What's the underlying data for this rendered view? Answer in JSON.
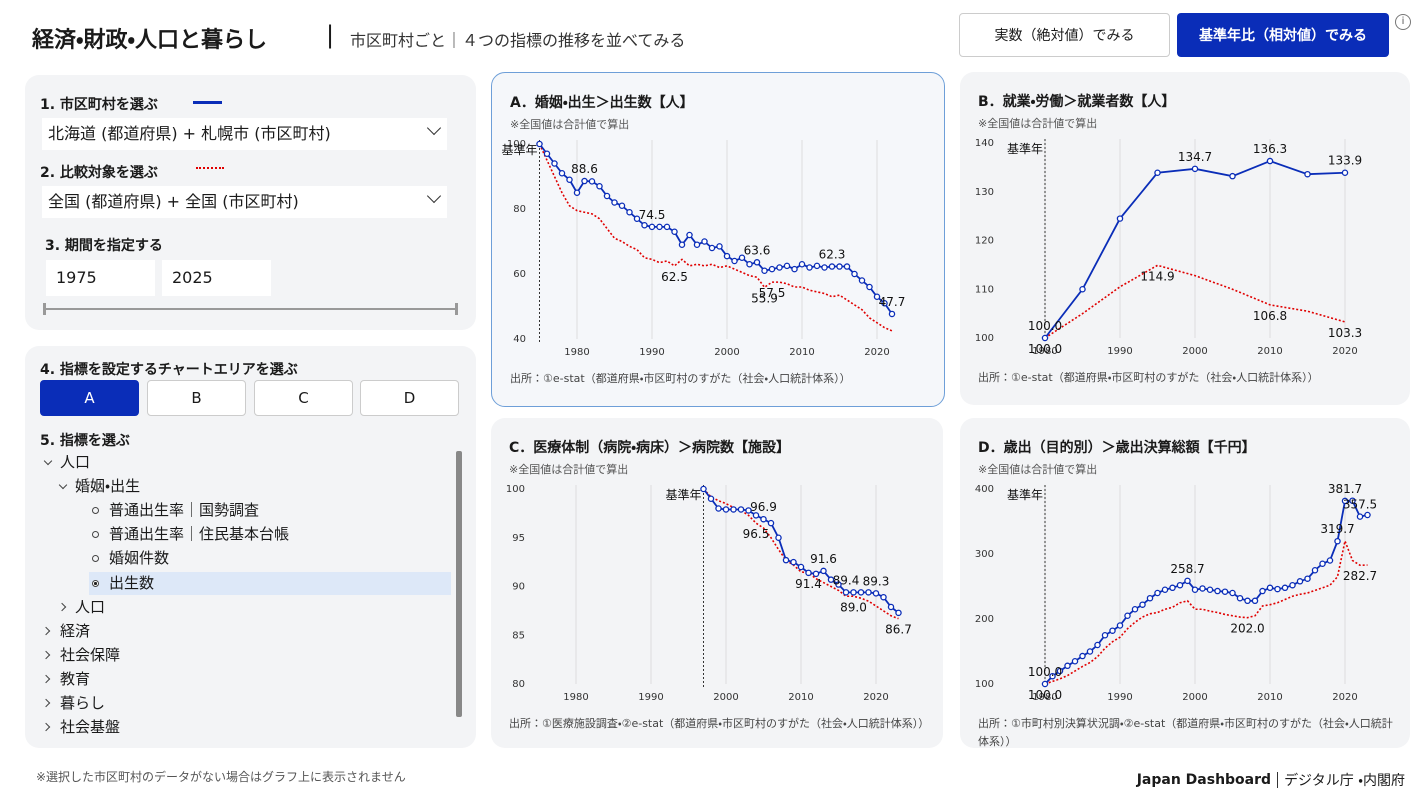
{
  "header": {
    "title": "経済・財政・人口と暮らし",
    "separator": "|",
    "subtitle": "市区町村ごと｜４つの指標の推移を並べてみる",
    "buttons": [
      "実数（絶対値）でみる",
      "基準年比（相対値）でみる"
    ],
    "info": "i"
  },
  "sidebar": {
    "area": {
      "label": "1. 市区町村を選ぶ",
      "value": "北海道 (都道府県) + 札幌市 (市区町村)"
    },
    "compare": {
      "label": "2. 比較対象を選ぶ",
      "value": "全国 (都道府県) + 全国 (市区町村)"
    },
    "period": {
      "label": "3. 期間を指定する",
      "start": "1975",
      "end": "2025"
    },
    "chart_area": {
      "label": "4. 指標を設定するチャートエリアを選ぶ",
      "tabs": [
        "A",
        "B",
        "C",
        "D"
      ]
    },
    "indicator": {
      "label": "5. 指標を選ぶ",
      "items": [
        "人口",
        "婚姻・出生",
        "普通出生率｜国勢調査",
        "普通出生率｜住民基本台帳",
        "婚姻件数",
        "出生数",
        "人口",
        "経済",
        "社会保障",
        "教育",
        "暮らし",
        "社会基盤"
      ]
    }
  },
  "chart_data": [
    {
      "type": "line",
      "title": "A．婚姻・出生＞出生数【人】",
      "note": "※全国値は合計値で算出",
      "source": "出所：①e-stat（都道府県・市区町村のすがた（社会・人口統計体系））",
      "base_year": 1975,
      "base_year_label": "基準年",
      "xlim": [
        1974,
        2026
      ],
      "xticks": [
        1980,
        1990,
        2000,
        2010,
        2020
      ],
      "ylim": [
        40,
        100
      ],
      "yticks": [
        40,
        60,
        80,
        100
      ],
      "grid": "x",
      "x": [
        1975,
        1976,
        1977,
        1978,
        1979,
        1980,
        1981,
        1982,
        1983,
        1984,
        1985,
        1986,
        1987,
        1988,
        1989,
        1990,
        1991,
        1992,
        1993,
        1994,
        1995,
        1996,
        1997,
        1998,
        1999,
        2000,
        2001,
        2002,
        2003,
        2004,
        2005,
        2006,
        2007,
        2008,
        2009,
        2010,
        2011,
        2012,
        2013,
        2014,
        2015,
        2016,
        2017,
        2018,
        2019,
        2020,
        2021,
        2022
      ],
      "series": [
        {
          "color": "#0a2db8",
          "line_style": "solid",
          "markers": true,
          "values": [
            100,
            97,
            94,
            91,
            89,
            85,
            88.6,
            88.5,
            87,
            84,
            82,
            81,
            79,
            77,
            75,
            74.5,
            74.5,
            74.5,
            73,
            69,
            72,
            69,
            70,
            68,
            68.5,
            65.5,
            64,
            65,
            63,
            63.6,
            61,
            61.5,
            62,
            62.5,
            61.5,
            63,
            62,
            62.5,
            62,
            62.3,
            62.3,
            62.3,
            60,
            58,
            56,
            53,
            51,
            47.7
          ],
          "value_labels": [
            null,
            null,
            null,
            null,
            null,
            null,
            "88.6",
            null,
            null,
            null,
            null,
            null,
            null,
            null,
            null,
            "74.5",
            null,
            null,
            null,
            null,
            null,
            null,
            null,
            null,
            null,
            null,
            null,
            null,
            null,
            "63.6",
            null,
            null,
            null,
            null,
            null,
            null,
            null,
            null,
            null,
            "62.3",
            null,
            null,
            null,
            null,
            null,
            null,
            null,
            "47.7"
          ]
        },
        {
          "color": "#e00000",
          "line_style": "dotted",
          "markers": false,
          "values": [
            100,
            95,
            90,
            85,
            81,
            79.5,
            79,
            78.5,
            77,
            74,
            71,
            70,
            68.5,
            67.5,
            65,
            64.5,
            63.5,
            64,
            62.5,
            64.5,
            62.5,
            63,
            62.5,
            63,
            62,
            62.5,
            61.5,
            60.5,
            59.5,
            59,
            55.9,
            57.5,
            57.5,
            57,
            56,
            56,
            55,
            54.5,
            54,
            53,
            53.5,
            52,
            50.5,
            49,
            46.5,
            45,
            43.5,
            42.5
          ],
          "value_labels": [
            null,
            null,
            null,
            null,
            null,
            null,
            null,
            null,
            null,
            null,
            null,
            null,
            null,
            null,
            null,
            null,
            null,
            null,
            "62.5",
            null,
            null,
            null,
            null,
            null,
            null,
            null,
            null,
            null,
            null,
            null,
            "55.9",
            "57.5",
            null,
            null,
            null,
            null,
            null,
            null,
            null,
            null,
            null,
            null,
            null,
            null,
            null,
            null,
            null,
            null
          ]
        }
      ]
    },
    {
      "type": "line",
      "title": "B．就業・労働＞就業者数【人】",
      "note": "※全国値は合計値で算出",
      "source": "出所：①e-stat（都道府県・市区町村のすがた（社会・人口統計体系））",
      "base_year": 1980,
      "base_year_label": "基準年",
      "xlim": [
        1974,
        2026
      ],
      "xticks": [
        1980,
        1990,
        2000,
        2010,
        2020
      ],
      "ylim": [
        100,
        140
      ],
      "yticks": [
        100,
        110,
        120,
        130,
        140
      ],
      "grid": "x",
      "x": [
        1980,
        1985,
        1990,
        1995,
        2000,
        2005,
        2010,
        2015,
        2020
      ],
      "series": [
        {
          "color": "#0a2db8",
          "line_style": "solid",
          "markers": true,
          "values": [
            100,
            110,
            124.5,
            133.9,
            134.7,
            133.2,
            136.3,
            133.6,
            133.9
          ],
          "value_labels": [
            "100.0",
            null,
            null,
            null,
            "134.7",
            null,
            "136.3",
            null,
            "133.9"
          ]
        },
        {
          "color": "#e00000",
          "line_style": "dotted",
          "markers": false,
          "values": [
            100,
            105,
            110.5,
            114.9,
            112.8,
            110,
            106.8,
            105.5,
            103.3
          ],
          "value_labels": [
            "100.0",
            null,
            null,
            "114.9",
            null,
            null,
            "106.8",
            null,
            "103.3"
          ]
        }
      ]
    },
    {
      "type": "line",
      "title": "C．医療体制（病院・病床）＞病院数【施設】",
      "note": "※全国値は合計値で算出",
      "source": "出所：①医療施設調査・②e-stat（都道府県・市区町村のすがた（社会・人口統計体系））",
      "base_year": 1997,
      "base_year_label": "基準年",
      "xlim": [
        1974,
        2026
      ],
      "xticks": [
        1980,
        1990,
        2000,
        2010,
        2020
      ],
      "ylim": [
        80,
        100
      ],
      "yticks": [
        80,
        85,
        90,
        95,
        100
      ],
      "grid": "x",
      "x": [
        1997,
        1998,
        1999,
        2000,
        2001,
        2002,
        2003,
        2004,
        2005,
        2006,
        2007,
        2008,
        2009,
        2010,
        2011,
        2012,
        2013,
        2014,
        2015,
        2016,
        2017,
        2018,
        2019,
        2020,
        2021,
        2022,
        2023
      ],
      "series": [
        {
          "color": "#0a2db8",
          "line_style": "solid",
          "markers": true,
          "values": [
            100,
            99,
            98,
            97.9,
            97.9,
            97.9,
            97.8,
            97.3,
            96.9,
            96.5,
            95,
            92.7,
            92.5,
            92,
            91.4,
            91.3,
            91.6,
            90.7,
            90.2,
            89.4,
            89.4,
            89.4,
            89.4,
            89.3,
            88.9,
            87.9,
            87.3
          ],
          "value_labels": [
            null,
            null,
            null,
            null,
            null,
            null,
            null,
            null,
            "96.9",
            null,
            null,
            null,
            null,
            null,
            null,
            null,
            "91.6",
            null,
            null,
            "89.4",
            null,
            null,
            null,
            "89.3",
            null,
            null,
            null
          ]
        },
        {
          "color": "#e00000",
          "line_style": "dotted",
          "markers": false,
          "values": [
            100,
            99.2,
            98.8,
            98.5,
            98.1,
            97.8,
            97.3,
            96.5,
            96,
            95,
            93.8,
            92.7,
            92.2,
            91.5,
            91.4,
            90.8,
            90.4,
            90,
            89.6,
            89,
            89,
            88.8,
            88.5,
            88,
            87.5,
            87,
            86.7
          ],
          "value_labels": [
            null,
            null,
            null,
            null,
            null,
            null,
            null,
            "96.5",
            null,
            null,
            null,
            null,
            null,
            null,
            "91.4",
            null,
            null,
            null,
            null,
            null,
            "89.0",
            null,
            null,
            null,
            null,
            null,
            "86.7"
          ]
        }
      ]
    },
    {
      "type": "line",
      "title": "D．歳出（目的別）＞歳出決算総額【千円】",
      "note": "※全国値は合計値で算出",
      "source": "出所：①市町村別決算状況調・②e-stat（都道府県・市区町村のすがた（社会・人口統計体系））",
      "base_year": 1980,
      "base_year_label": "基準年",
      "xlim": [
        1974,
        2026
      ],
      "xticks": [
        1980,
        1990,
        2000,
        2010,
        2020
      ],
      "ylim": [
        100,
        400
      ],
      "yticks": [
        100,
        200,
        300,
        400
      ],
      "grid": "x",
      "x": [
        1980,
        1981,
        1982,
        1983,
        1984,
        1985,
        1986,
        1987,
        1988,
        1989,
        1990,
        1991,
        1992,
        1993,
        1994,
        1995,
        1996,
        1997,
        1998,
        1999,
        2000,
        2001,
        2002,
        2003,
        2004,
        2005,
        2006,
        2007,
        2008,
        2009,
        2010,
        2011,
        2012,
        2013,
        2014,
        2015,
        2016,
        2017,
        2018,
        2019,
        2020,
        2021,
        2022,
        2023
      ],
      "series": [
        {
          "color": "#0a2db8",
          "line_style": "solid",
          "markers": true,
          "values": [
            100,
            112,
            120,
            128,
            135,
            143,
            150,
            160,
            175,
            182,
            190,
            205,
            215,
            222,
            232,
            240,
            245,
            248,
            252,
            258.7,
            245,
            247,
            245,
            243,
            242,
            240,
            232,
            228,
            228,
            243,
            248,
            246,
            248,
            252,
            258,
            262,
            275,
            285,
            290,
            319.7,
            381.7,
            382,
            357.5,
            360
          ],
          "value_labels": [
            "100.0",
            null,
            null,
            null,
            null,
            null,
            null,
            null,
            null,
            null,
            null,
            null,
            null,
            null,
            null,
            null,
            null,
            null,
            null,
            "258.7",
            null,
            null,
            null,
            null,
            null,
            null,
            null,
            null,
            null,
            null,
            null,
            null,
            null,
            null,
            null,
            null,
            null,
            null,
            null,
            "319.7",
            "381.7",
            null,
            "357.5",
            null
          ]
        },
        {
          "color": "#e00000",
          "line_style": "dotted",
          "markers": false,
          "values": [
            100,
            104,
            108,
            113,
            120,
            127,
            133,
            142,
            155,
            165,
            172,
            185,
            195,
            203,
            208,
            210,
            215,
            218,
            225,
            228,
            215,
            215,
            212,
            210,
            207,
            205,
            203,
            202,
            205,
            220,
            222,
            225,
            230,
            235,
            238,
            240,
            244,
            248,
            252,
            265,
            320,
            290,
            282.7,
            283
          ],
          "value_labels": [
            "100.0",
            null,
            null,
            null,
            null,
            null,
            null,
            null,
            null,
            null,
            null,
            null,
            null,
            null,
            null,
            null,
            null,
            null,
            null,
            null,
            null,
            null,
            null,
            null,
            null,
            null,
            null,
            "202.0",
            null,
            null,
            null,
            null,
            null,
            null,
            null,
            null,
            null,
            null,
            null,
            null,
            null,
            null,
            "282.7",
            null
          ]
        }
      ]
    }
  ],
  "footer": {
    "note": "※選択した市区町村のデータがない場合はグラフ上に表示されません",
    "brand": "Japan Dashboard",
    "org": "デジタル庁 ・内閣府"
  }
}
